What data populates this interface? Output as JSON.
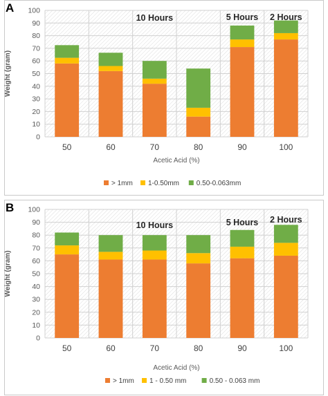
{
  "colors": {
    "gt1": "#ed7d31",
    "mid": "#ffc000",
    "fine": "#70ad47"
  },
  "chart_data": [
    {
      "type": "bar",
      "stacked": true,
      "panel_label": "A",
      "categories": [
        "50",
        "60",
        "70",
        "80",
        "90",
        "100"
      ],
      "xlabel": "Acetic Acid (%)",
      "ylabel": "Weight (gram)",
      "ylim": [
        0,
        100
      ],
      "yticks": [
        0,
        10,
        20,
        30,
        40,
        50,
        60,
        70,
        80,
        90,
        100
      ],
      "grid": true,
      "legend_position": "bottom",
      "series": [
        {
          "name": "> 1mm",
          "color": "#ed7d31",
          "values": [
            58,
            52,
            42,
            16,
            71,
            77
          ]
        },
        {
          "name": "1-0.50mm",
          "color": "#ffc000",
          "values": [
            4.5,
            4,
            4,
            7,
            6,
            5
          ]
        },
        {
          "name": "0.50-0.063mm",
          "color": "#70ad47",
          "values": [
            10,
            10.5,
            14,
            31,
            11,
            10
          ]
        }
      ],
      "annotations": [
        {
          "text": "10 Hours",
          "category": "70"
        },
        {
          "text": "5 Hours",
          "category": "90"
        },
        {
          "text": "2 Hours",
          "category": "100"
        }
      ]
    },
    {
      "type": "bar",
      "stacked": true,
      "panel_label": "B",
      "categories": [
        "50",
        "60",
        "70",
        "80",
        "90",
        "100"
      ],
      "xlabel": "Acetic Acid (%)",
      "ylabel": "Weight (gram)",
      "ylim": [
        0,
        100
      ],
      "yticks": [
        0,
        10,
        20,
        30,
        40,
        50,
        60,
        70,
        80,
        90,
        100
      ],
      "grid": true,
      "legend_position": "bottom",
      "series": [
        {
          "name": "> 1mm",
          "color": "#ed7d31",
          "values": [
            65,
            61,
            61,
            58,
            62,
            64
          ]
        },
        {
          "name": "1 - 0.50 mm",
          "color": "#ffc000",
          "values": [
            7,
            6,
            7,
            8,
            9,
            10
          ]
        },
        {
          "name": "0.50 - 0.063 mm",
          "color": "#70ad47",
          "values": [
            10,
            13,
            12,
            14,
            13,
            14
          ]
        }
      ],
      "annotations": [
        {
          "text": "10 Hours",
          "category": "70"
        },
        {
          "text": "5 Hours",
          "category": "90"
        },
        {
          "text": "2 Hours",
          "category": "100"
        }
      ]
    }
  ]
}
